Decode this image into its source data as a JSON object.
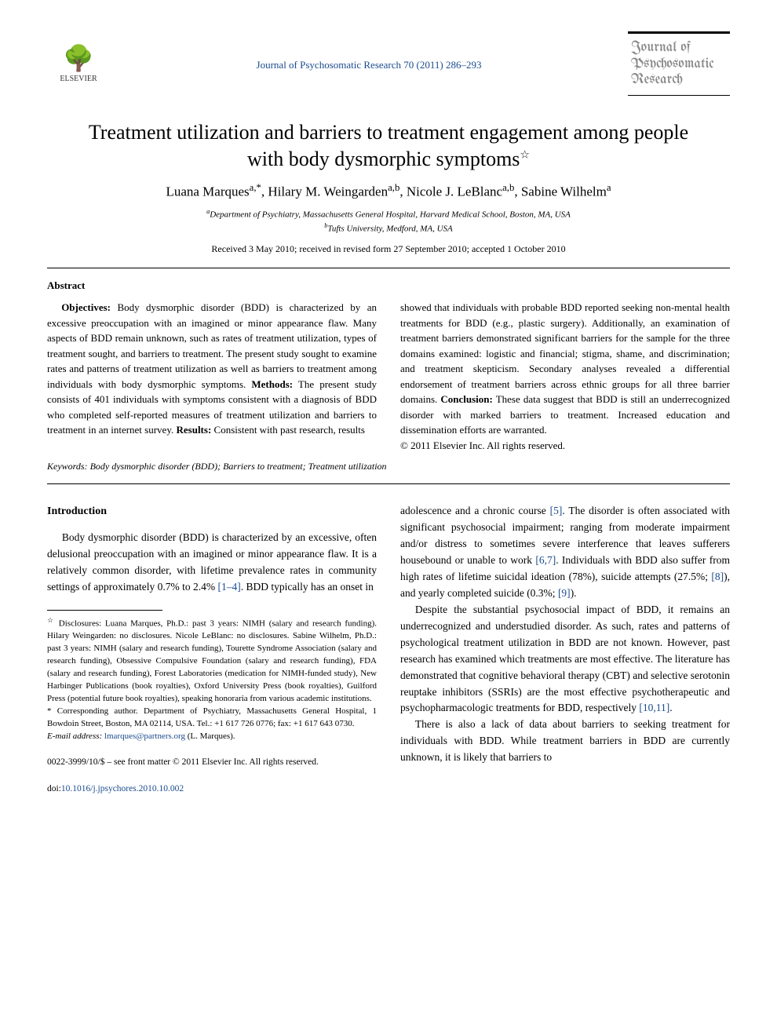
{
  "header": {
    "publisher_name": "ELSEVIER",
    "journal_ref": "Journal of Psychosomatic Research 70 (2011) 286–293",
    "journal_box_line1": "Journal of",
    "journal_box_line2": "Psychosomatic",
    "journal_box_line3": "Research"
  },
  "title": {
    "line1": "Treatment utilization and barriers to treatment engagement among people",
    "line2": "with body dysmorphic symptoms",
    "star": "☆"
  },
  "authors": {
    "a1": "Luana Marques",
    "a1_sup": "a,*",
    "a2": "Hilary M. Weingarden",
    "a2_sup": "a,b",
    "a3": "Nicole J. LeBlanc",
    "a3_sup": "a,b",
    "a4": "Sabine Wilhelm",
    "a4_sup": "a"
  },
  "affiliations": {
    "a": "Department of Psychiatry, Massachusetts General Hospital, Harvard Medical School, Boston, MA, USA",
    "b": "Tufts University, Medford, MA, USA"
  },
  "dates": "Received 3 May 2010; received in revised form 27 September 2010; accepted 1 October 2010",
  "abstract": {
    "heading": "Abstract",
    "left": {
      "objectives_label": "Objectives:",
      "objectives": " Body dysmorphic disorder (BDD) is characterized by an excessive preoccupation with an imagined or minor appearance flaw. Many aspects of BDD remain unknown, such as rates of treatment utilization, types of treatment sought, and barriers to treatment. The present study sought to examine rates and patterns of treatment utilization as well as barriers to treatment among individuals with body dysmorphic symptoms. ",
      "methods_label": "Methods:",
      "methods": " The present study consists of 401 individuals with symptoms consistent with a diagnosis of BDD who completed self-reported measures of treatment utilization and barriers to treatment in an internet survey. ",
      "results_label": "Results:",
      "results": " Consistent with past research, results"
    },
    "right": {
      "cont": "showed that individuals with probable BDD reported seeking non-mental health treatments for BDD (e.g., plastic surgery). Additionally, an examination of treatment barriers demonstrated significant barriers for the sample for the three domains examined: logistic and financial; stigma, shame, and discrimination; and treatment skepticism. Secondary analyses revealed a differential endorsement of treatment barriers across ethnic groups for all three barrier domains. ",
      "conclusion_label": "Conclusion:",
      "conclusion": " These data suggest that BDD is still an underrecognized disorder with marked barriers to treatment. Increased education and dissemination efforts are warranted.",
      "copyright": "© 2011 Elsevier Inc. All rights reserved."
    },
    "keywords_label": "Keywords:",
    "keywords": " Body dysmorphic disorder (BDD); Barriers to treatment; Treatment utilization"
  },
  "body": {
    "intro_heading": "Introduction",
    "left_p1a": "Body dysmorphic disorder (BDD) is characterized by an excessive, often delusional preoccupation with an imagined or minor appearance flaw. It is a relatively common disorder, with lifetime prevalence rates in community settings of approximately 0.7% to 2.4% ",
    "left_cite1": "[1–4]",
    "left_p1b": ". BDD typically has an onset in",
    "right_p1a": "adolescence and a chronic course ",
    "right_cite5": "[5]",
    "right_p1b": ". The disorder is often associated with significant psychosocial impairment; ranging from moderate impairment and/or distress to sometimes severe interference that leaves sufferers housebound or unable to work ",
    "right_cite67": "[6,7]",
    "right_p1c": ". Individuals with BDD also suffer from high rates of lifetime suicidal ideation (78%), suicide attempts (27.5%; ",
    "right_cite8": "[8]",
    "right_p1d": "), and yearly completed suicide (0.3%; ",
    "right_cite9": "[9]",
    "right_p1e": ").",
    "right_p2a": "Despite the substantial psychosocial impact of BDD, it remains an underrecognized and understudied disorder. As such, rates and patterns of psychological treatment utilization in BDD are not known. However, past research has examined which treatments are most effective. The literature has demonstrated that cognitive behavioral therapy (CBT) and selective serotonin reuptake inhibitors (SSRIs) are the most effective psychotherapeutic and psychopharmacologic treatments for BDD, respectively ",
    "right_cite1011": "[10,11]",
    "right_p2b": ".",
    "right_p3": "There is also a lack of data about barriers to seeking treatment for individuals with BDD. While treatment barriers in BDD are currently unknown, it is likely that barriers to"
  },
  "footnotes": {
    "disclosure": "Disclosures: Luana Marques, Ph.D.: past 3 years: NIMH (salary and research funding). Hilary Weingarden: no disclosures. Nicole LeBlanc: no disclosures. Sabine Wilhelm, Ph.D.: past 3 years: NIMH (salary and research funding), Tourette Syndrome Association (salary and research funding), Obsessive Compulsive Foundation (salary and research funding), FDA (salary and research funding), Forest Laboratories (medication for NIMH-funded study), New Harbinger Publications (book royalties), Oxford University Press (book royalties), Guilford Press (potential future book royalties), speaking honoraria from various academic institutions.",
    "corresponding": "Corresponding author. Department of Psychiatry, Massachusetts General Hospital, 1 Bowdoin Street, Boston, MA 02114, USA. Tel.: +1 617 726 0776; fax: +1 617 643 0730.",
    "email_label": "E-mail address:",
    "email": "lmarques@partners.org",
    "email_who": " (L. Marques)."
  },
  "footer": {
    "front_matter": "0022-3999/10/$ – see front matter © 2011 Elsevier Inc. All rights reserved.",
    "doi_label": "doi:",
    "doi": "10.1016/j.jpsychores.2010.10.002"
  },
  "style": {
    "link_color": "#1a4b8e",
    "text_color": "#000000",
    "bg_color": "#ffffff",
    "body_font_size": 13.5,
    "abstract_font_size": 13,
    "title_font_size": 26
  }
}
